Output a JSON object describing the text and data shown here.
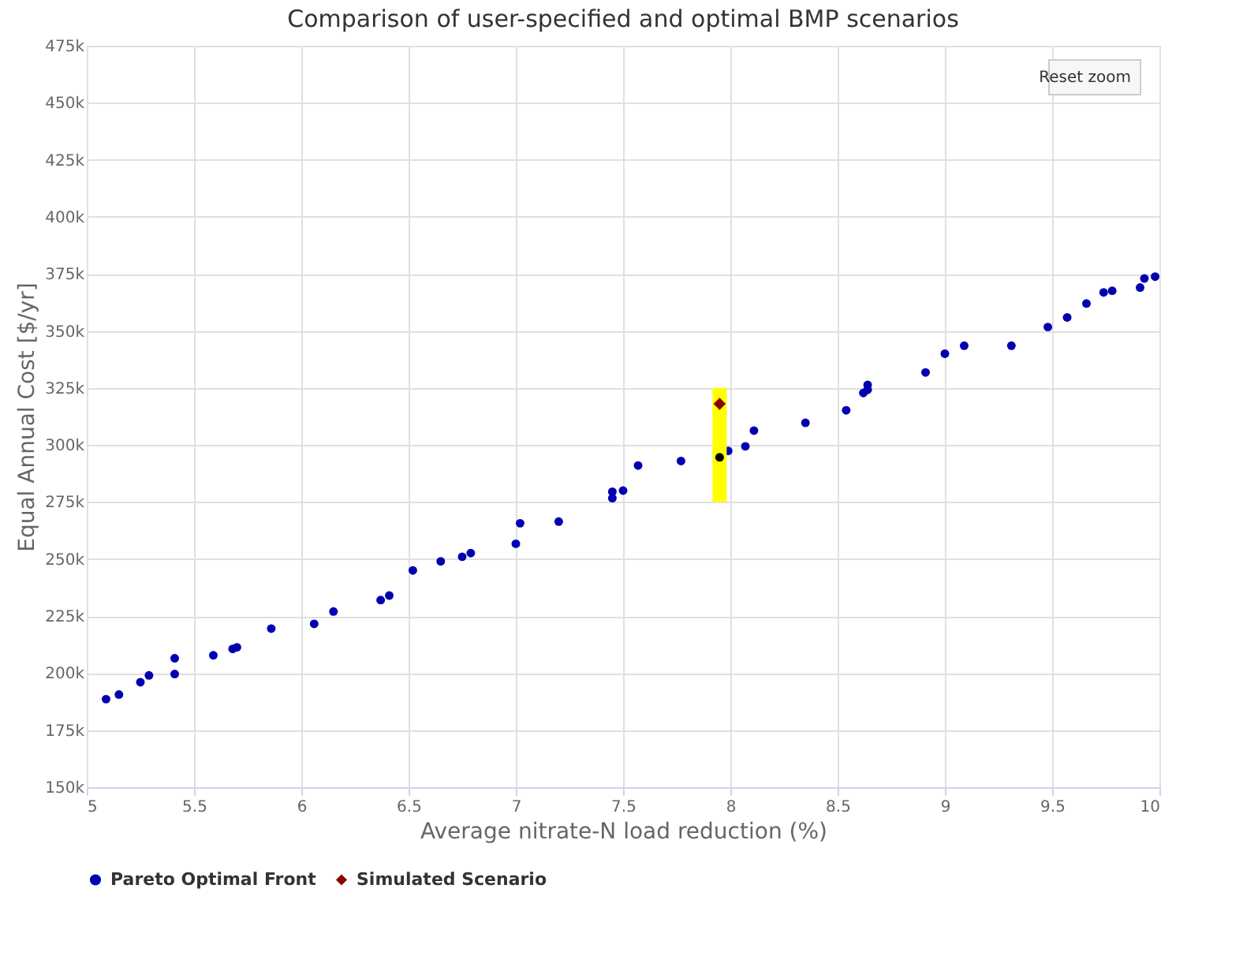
{
  "chart_data": {
    "type": "scatter",
    "title": "Comparison of user-specified and optimal BMP scenarios",
    "xlabel": "Average nitrate-N load reduction (%)",
    "ylabel": "Equal Annual Cost [$/yr]",
    "xlim": [
      5,
      10
    ],
    "xticks": [
      5,
      5.5,
      6,
      6.5,
      7,
      7.5,
      8,
      8.5,
      9,
      9.5,
      10
    ],
    "ylim": [
      150000,
      475000
    ],
    "yticks": [
      {
        "value": 150000,
        "label": "150k"
      },
      {
        "value": 175000,
        "label": "175k"
      },
      {
        "value": 200000,
        "label": "200k"
      },
      {
        "value": 225000,
        "label": "225k"
      },
      {
        "value": 250000,
        "label": "250k"
      },
      {
        "value": 275000,
        "label": "275k"
      },
      {
        "value": 300000,
        "label": "300k"
      },
      {
        "value": 325000,
        "label": "325k"
      },
      {
        "value": 350000,
        "label": "350k"
      },
      {
        "value": 375000,
        "label": "375k"
      },
      {
        "value": 400000,
        "label": "400k"
      },
      {
        "value": 425000,
        "label": "425k"
      },
      {
        "value": 450000,
        "label": "450k"
      },
      {
        "value": 475000,
        "label": "475k"
      }
    ],
    "grid": true,
    "legend": "bottom",
    "annotations": [
      "Reset zoom"
    ],
    "series": [
      {
        "name": "Pareto Optimal Front",
        "color": "#0000b0",
        "marker": "circle",
        "x": [
          5.09,
          5.15,
          5.25,
          5.29,
          5.41,
          5.41,
          5.59,
          5.68,
          5.7,
          5.86,
          6.06,
          6.15,
          6.37,
          6.41,
          6.52,
          6.65,
          6.75,
          6.79,
          7.0,
          7.02,
          7.2,
          7.45,
          7.45,
          7.5,
          7.57,
          7.77,
          7.99,
          8.07,
          8.11,
          8.35,
          8.54,
          8.62,
          8.64,
          8.64,
          8.91,
          9.0,
          9.09,
          9.31,
          9.48,
          9.57,
          9.66,
          9.74,
          9.78,
          9.91,
          9.93,
          9.98
        ],
        "values": [
          188600,
          190600,
          196000,
          199000,
          206500,
          199600,
          207800,
          210600,
          211300,
          219500,
          221600,
          227000,
          232000,
          234000,
          245000,
          249000,
          251000,
          252600,
          256700,
          265700,
          266400,
          276700,
          279500,
          280000,
          291000,
          293000,
          297400,
          299400,
          306300,
          309700,
          315200,
          322800,
          324200,
          326300,
          331800,
          340000,
          343500,
          343500,
          351700,
          355900,
          362000,
          366900,
          367600,
          369000,
          373000,
          373800
        ]
      },
      {
        "color": "#000000",
        "marker": "circle",
        "x": [
          7.95
        ],
        "values": [
          294600
        ]
      },
      {
        "name": "Simulated Scenario",
        "color": "#8b0000",
        "marker": "diamond",
        "x": [
          7.95
        ],
        "values": [
          318000
        ],
        "errors": [
          [
            275000,
            325000
          ]
        ]
      }
    ]
  }
}
